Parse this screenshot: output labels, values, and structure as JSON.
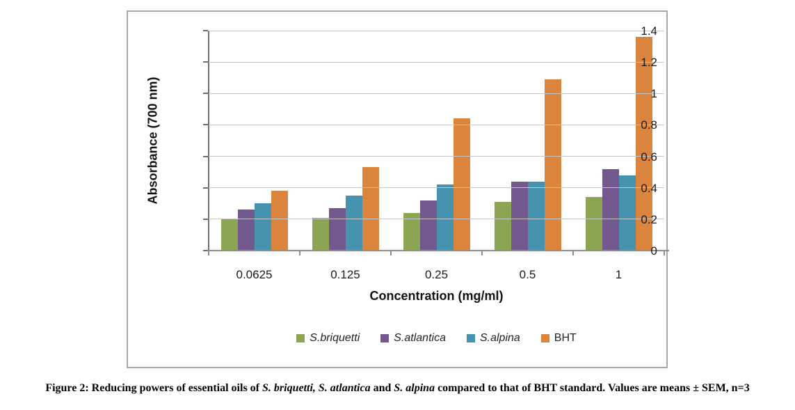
{
  "chart_data": {
    "type": "bar",
    "title": "",
    "xlabel": "Concentration (mg/ml)",
    "ylabel": "Absorbance (700 nm)",
    "categories": [
      "0.0625",
      "0.125",
      "0.25",
      "0.5",
      "1"
    ],
    "series": [
      {
        "name": "S.briquetti",
        "italic": true,
        "color": "#8ba553",
        "values": [
          0.2,
          0.21,
          0.24,
          0.31,
          0.34
        ]
      },
      {
        "name": "S.atlantica",
        "italic": true,
        "color": "#72588c",
        "values": [
          0.26,
          0.27,
          0.32,
          0.44,
          0.52
        ]
      },
      {
        "name": "S.alpina",
        "italic": true,
        "color": "#4593ae",
        "values": [
          0.3,
          0.35,
          0.42,
          0.44,
          0.48
        ]
      },
      {
        "name": "BHT",
        "italic": false,
        "color": "#db843d",
        "values": [
          0.38,
          0.53,
          0.84,
          1.09,
          1.36
        ]
      }
    ],
    "ylim": [
      0,
      1.4
    ],
    "ytick_step": 0.2,
    "ytick_labels": [
      "0",
      "0.2",
      "0.4",
      "0.6",
      "0.8",
      "1",
      "1.2",
      "1.4"
    ],
    "grid": true,
    "legend_position": "bottom",
    "colors": {
      "gridline": "#c6c6c6",
      "y_axis": "#6e6e6e",
      "x_axis": "#8c8c8c",
      "frame_border": "#a6a6a6",
      "tick_text": "#1a1a1a"
    }
  },
  "caption": {
    "segments": [
      {
        "text": "Figure 2: Reducing powers of essential oils of ",
        "italic": false
      },
      {
        "text": "S. briquetti, S. atlantica",
        "italic": true
      },
      {
        "text": " and ",
        "italic": false
      },
      {
        "text": "S. alpina",
        "italic": true
      },
      {
        "text": " compared to that of BHT standard. Values are means ± SEM, n=3",
        "italic": false
      }
    ]
  }
}
